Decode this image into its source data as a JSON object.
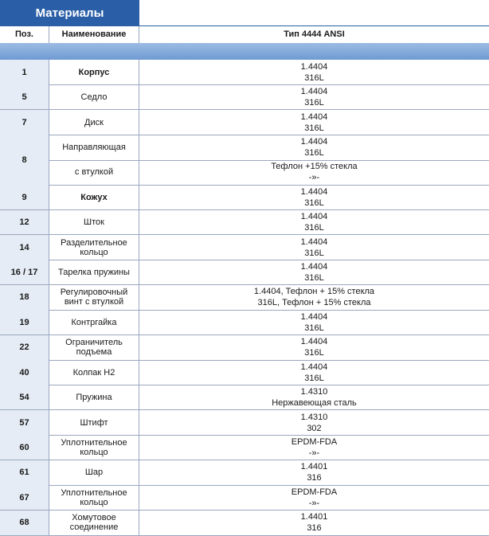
{
  "title": "Материалы",
  "headers": {
    "pos": "Поз.",
    "name": "Наименование",
    "type": "Тип 4444 ANSI"
  },
  "rows": [
    {
      "pos": "1",
      "name": "Корпус",
      "bold": true,
      "mat": [
        "1.4404",
        "316L"
      ]
    },
    {
      "pos": "5",
      "name": "Седло",
      "bold": false,
      "mat": [
        "1.4404",
        "316L"
      ]
    },
    {
      "pos": "7",
      "name": "Диск",
      "bold": false,
      "mat": [
        "1.4404",
        "316L"
      ]
    },
    {
      "pos": "8",
      "sub": [
        {
          "name": "Направляющая",
          "mat": [
            "1.4404",
            "316L"
          ]
        },
        {
          "name": "с втулкой",
          "mat": [
            "Тефлон +15% стекла",
            "-»-"
          ]
        }
      ]
    },
    {
      "pos": "9",
      "name": "Кожух",
      "bold": true,
      "mat": [
        "1.4404",
        "316L"
      ]
    },
    {
      "pos": "12",
      "name": "Шток",
      "bold": false,
      "mat": [
        "1.4404",
        "316L"
      ]
    },
    {
      "pos": "14",
      "name": "Разделительное кольцо",
      "bold": false,
      "mat": [
        "1.4404",
        "316L"
      ]
    },
    {
      "pos": "16 / 17",
      "name": "Тарелка пружины",
      "bold": false,
      "mat": [
        "1.4404",
        "316L"
      ]
    },
    {
      "pos": "18",
      "name": "Регулировочный винт с втулкой",
      "bold": false,
      "mat": [
        "1.4404, Тефлон + 15% стекла",
        "316L, Тефлон + 15% стекла"
      ]
    },
    {
      "pos": "19",
      "name": "Контргайка",
      "bold": false,
      "mat": [
        "1.4404",
        "316L"
      ]
    },
    {
      "pos": "22",
      "name": "Ограничитель подъема",
      "bold": false,
      "mat": [
        "1.4404",
        "316L"
      ]
    },
    {
      "pos": "40",
      "name": "Колпак Н2",
      "bold": false,
      "mat": [
        "1.4404",
        "316L"
      ]
    },
    {
      "pos": "54",
      "name": "Пружина",
      "bold": false,
      "mat": [
        "1.4310",
        "Нержавеющая сталь"
      ]
    },
    {
      "pos": "57",
      "name": "Штифт",
      "bold": false,
      "mat": [
        "1.4310",
        "302"
      ]
    },
    {
      "pos": "60",
      "name": "Уплотнительное кольцо",
      "bold": false,
      "mat": [
        "EPDM-FDA",
        "-»-"
      ]
    },
    {
      "pos": "61",
      "name": "Шар",
      "bold": false,
      "mat": [
        "1.4401",
        "316"
      ]
    },
    {
      "pos": "67",
      "name": "Уплотнительное кольцо",
      "bold": false,
      "mat": [
        "EPDM-FDA",
        "-»-"
      ]
    },
    {
      "pos": "68",
      "name": "Хомутовое соединение",
      "bold": false,
      "mat": [
        "1.4401",
        "316"
      ]
    }
  ]
}
